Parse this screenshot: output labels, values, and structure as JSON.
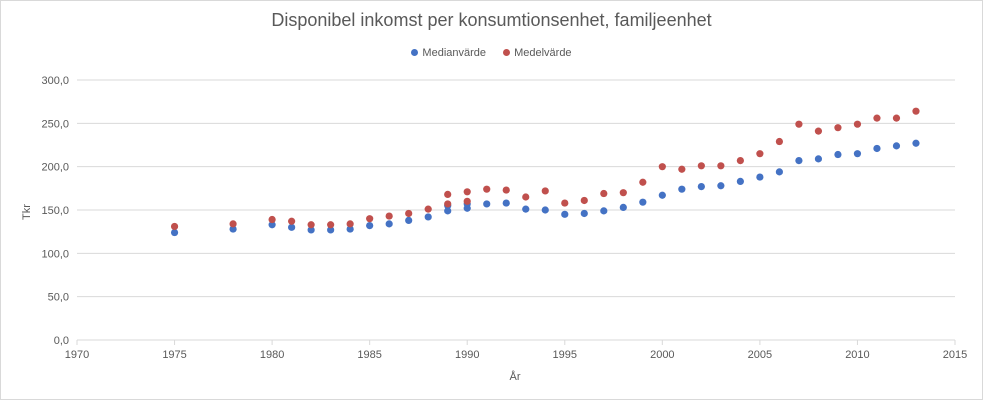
{
  "colors": {
    "median": "#4472c4",
    "mean": "#c0504d",
    "grid": "#d9d9d9",
    "text": "#595959"
  },
  "chart_data": {
    "type": "scatter",
    "title": "Disponibel inkomst per konsumtionsenhet, familjeenhet",
    "xlabel": "År",
    "ylabel": "Tkr",
    "xlim": [
      1970,
      2015
    ],
    "ylim": [
      0,
      300
    ],
    "xticks": [
      "1970",
      "1975",
      "1980",
      "1985",
      "1990",
      "1995",
      "2000",
      "2005",
      "2010",
      "2015"
    ],
    "yticks": [
      "0,0",
      "50,0",
      "100,0",
      "150,0",
      "200,0",
      "250,0",
      "300,0"
    ],
    "grid": "horizontal",
    "legend_position": "top",
    "series": [
      {
        "name": "Medianvärde",
        "color": "#4472c4",
        "points": [
          [
            1975,
            124
          ],
          [
            1978,
            128
          ],
          [
            1980,
            133
          ],
          [
            1981,
            130
          ],
          [
            1982,
            127
          ],
          [
            1983,
            127
          ],
          [
            1984,
            128
          ],
          [
            1985,
            132
          ],
          [
            1986,
            134
          ],
          [
            1987,
            138
          ],
          [
            1988,
            142
          ],
          [
            1989,
            149
          ],
          [
            1989,
            155
          ],
          [
            1990,
            152
          ],
          [
            1990,
            157
          ],
          [
            1991,
            157
          ],
          [
            1992,
            158
          ],
          [
            1993,
            151
          ],
          [
            1994,
            150
          ],
          [
            1995,
            145
          ],
          [
            1996,
            146
          ],
          [
            1997,
            149
          ],
          [
            1998,
            153
          ],
          [
            1999,
            159
          ],
          [
            2000,
            167
          ],
          [
            2001,
            174
          ],
          [
            2002,
            177
          ],
          [
            2003,
            178
          ],
          [
            2004,
            183
          ],
          [
            2005,
            188
          ],
          [
            2006,
            194
          ],
          [
            2007,
            207
          ],
          [
            2008,
            209
          ],
          [
            2009,
            214
          ],
          [
            2010,
            215
          ],
          [
            2011,
            221
          ],
          [
            2012,
            224
          ],
          [
            2013,
            227
          ]
        ]
      },
      {
        "name": "Medelvärde",
        "color": "#c0504d",
        "points": [
          [
            1975,
            131
          ],
          [
            1978,
            134
          ],
          [
            1980,
            139
          ],
          [
            1981,
            137
          ],
          [
            1982,
            133
          ],
          [
            1983,
            133
          ],
          [
            1984,
            134
          ],
          [
            1985,
            140
          ],
          [
            1986,
            143
          ],
          [
            1987,
            146
          ],
          [
            1988,
            151
          ],
          [
            1989,
            157
          ],
          [
            1989,
            168
          ],
          [
            1990,
            160
          ],
          [
            1990,
            171
          ],
          [
            1991,
            174
          ],
          [
            1992,
            173
          ],
          [
            1993,
            165
          ],
          [
            1994,
            172
          ],
          [
            1995,
            158
          ],
          [
            1996,
            161
          ],
          [
            1997,
            169
          ],
          [
            1998,
            170
          ],
          [
            1999,
            182
          ],
          [
            2000,
            200
          ],
          [
            2001,
            197
          ],
          [
            2002,
            201
          ],
          [
            2003,
            201
          ],
          [
            2004,
            207
          ],
          [
            2005,
            215
          ],
          [
            2006,
            229
          ],
          [
            2007,
            249
          ],
          [
            2008,
            241
          ],
          [
            2009,
            245
          ],
          [
            2010,
            249
          ],
          [
            2011,
            256
          ],
          [
            2012,
            256
          ],
          [
            2013,
            264
          ]
        ]
      }
    ]
  }
}
